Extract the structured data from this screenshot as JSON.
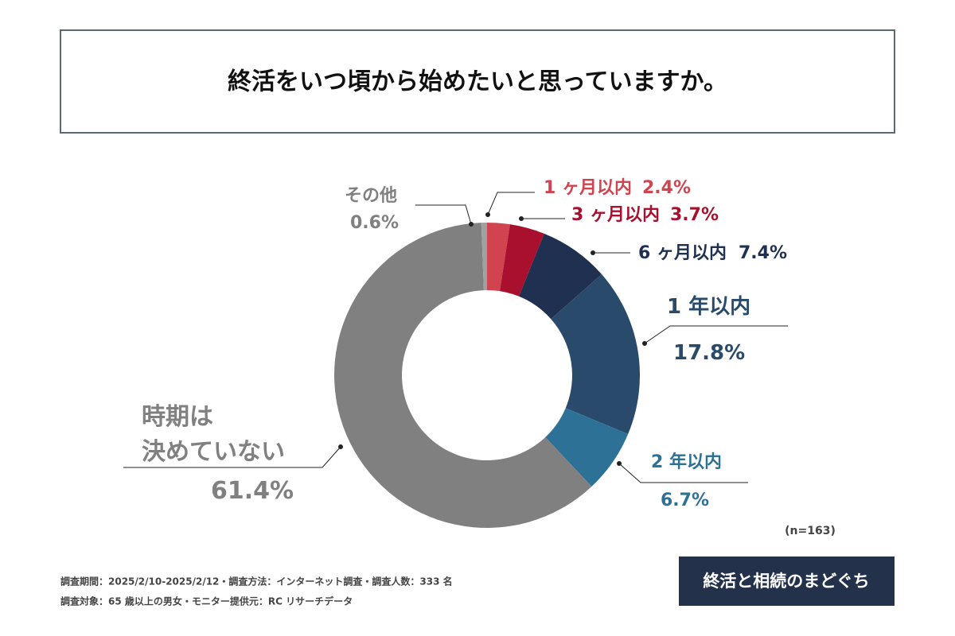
{
  "chart_data": {
    "type": "donut",
    "title": "終活をいつ頃から始めたいと思っていますか。",
    "categories": [
      "1 ヶ月以内",
      "3 ヶ月以内",
      "6 ヶ月以内",
      "1 年以内",
      "2 年以内",
      "時期は\n決めていない",
      "その他"
    ],
    "values": [
      2.4,
      3.7,
      7.4,
      17.8,
      6.7,
      61.4,
      0.6
    ],
    "value_labels": [
      "2.4%",
      "3.7%",
      "7.4%",
      "17.8%",
      "6.7%",
      "61.4%",
      "0.6%"
    ],
    "colors": [
      "#d0434f",
      "#a8102e",
      "#1f3050",
      "#2a4a6b",
      "#2e7196",
      "#808080",
      "#a0a0a0"
    ],
    "label_colors": [
      "#d0434f",
      "#a8102e",
      "#1f3050",
      "#2a4a6b",
      "#2e7196",
      "#808080",
      "#808080"
    ],
    "note": "(n=163)"
  },
  "footer": {
    "lines": [
      "調査期間：2025/2/10-2025/2/12・調査方法：インターネット調査・調査人数：333 名",
      "調査対象：65 歳以上の男女・モニター提供元：RC リサーチデータ"
    ],
    "logo": "終活と相続のまどぐち"
  }
}
